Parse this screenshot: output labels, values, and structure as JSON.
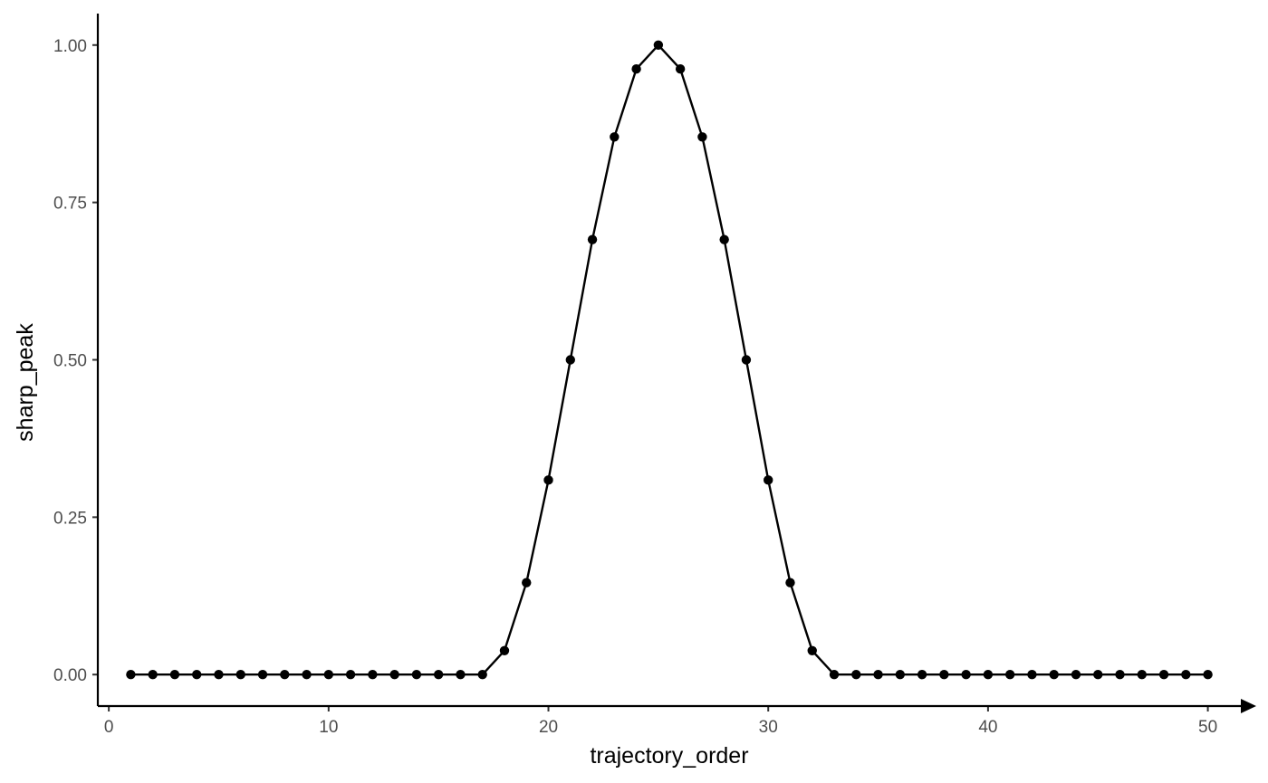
{
  "chart_data": {
    "type": "line",
    "title": "",
    "xlabel": "trajectory_order",
    "ylabel": "sharp_peak",
    "xlim": [
      -0.5,
      51.5
    ],
    "ylim": [
      -0.05,
      1.05
    ],
    "x_ticks": [
      0,
      10,
      20,
      30,
      40,
      50
    ],
    "x_tick_labels": [
      "0",
      "10",
      "20",
      "30",
      "40",
      "50"
    ],
    "y_ticks": [
      0,
      0.25,
      0.5,
      0.75,
      1
    ],
    "y_tick_labels": [
      "0.00",
      "0.25",
      "0.50",
      "0.75",
      "1.00"
    ],
    "grid": false,
    "legend": "none",
    "markers": true,
    "x_axis_arrow": true,
    "line_color": "#000000",
    "series": [
      {
        "x": [
          1,
          2,
          3,
          4,
          5,
          6,
          7,
          8,
          9,
          10,
          11,
          12,
          13,
          14,
          15,
          16,
          17,
          18,
          19,
          20,
          21,
          22,
          23,
          24,
          25,
          26,
          27,
          28,
          29,
          30,
          31,
          32,
          33,
          34,
          35,
          36,
          37,
          38,
          39,
          40,
          41,
          42,
          43,
          44,
          45,
          46,
          47,
          48,
          49,
          50
        ],
        "y": [
          0,
          0,
          0,
          0,
          0,
          0,
          0,
          0,
          0,
          0,
          0,
          0,
          0,
          0,
          0,
          0,
          0,
          0.038,
          0.146,
          0.309,
          0.5,
          0.691,
          0.854,
          0.962,
          1,
          0.962,
          0.854,
          0.691,
          0.5,
          0.309,
          0.146,
          0.038,
          0,
          0,
          0,
          0,
          0,
          0,
          0,
          0,
          0,
          0,
          0,
          0,
          0,
          0,
          0,
          0,
          0,
          0
        ]
      }
    ]
  }
}
